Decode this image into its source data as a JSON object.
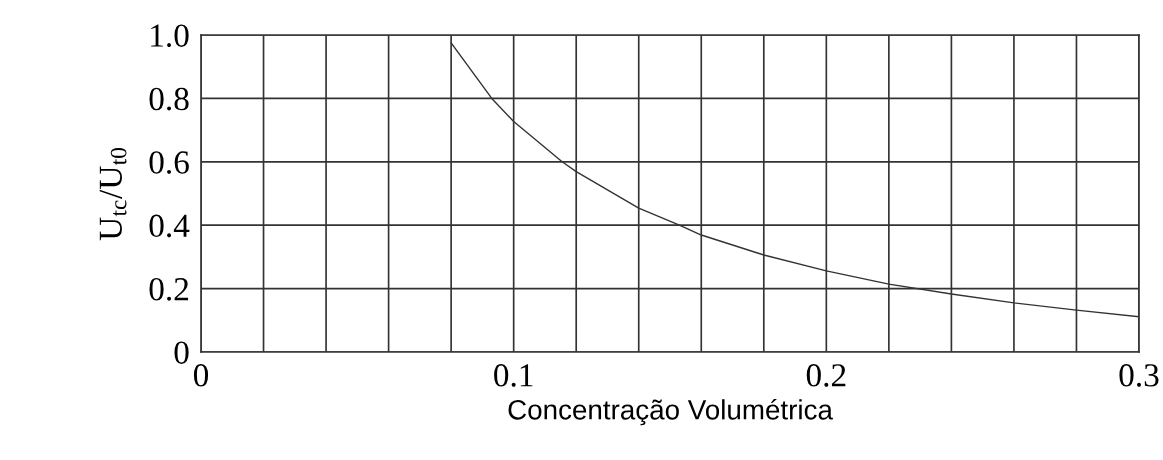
{
  "chart_data": {
    "type": "line",
    "xlabel": "Concentração Volumétrica",
    "ylabel": "U$_{tc}$/U$_{t0}$",
    "x": [
      0.08,
      0.093,
      0.1,
      0.1155,
      0.12,
      0.14,
      0.153,
      0.16,
      0.18,
      0.2,
      0.22,
      0.24,
      0.26,
      0.28,
      0.3
    ],
    "series": [
      {
        "color": "#333333",
        "values": [
          0.975,
          0.8,
          0.727,
          0.6,
          0.569,
          0.454,
          0.4,
          0.369,
          0.306,
          0.256,
          0.214,
          0.183,
          0.155,
          0.132,
          0.111
        ]
      }
    ],
    "xlim": [
      0,
      0.3
    ],
    "ylim": [
      0,
      1.0
    ],
    "xticks": [
      0,
      {
        "value": 0.02,
        "label": null
      },
      {
        "value": 0.04,
        "label": null
      },
      {
        "value": 0.06,
        "label": null
      },
      {
        "value": 0.08,
        "label": null
      },
      0.1,
      {
        "value": 0.12,
        "label": null
      },
      {
        "value": 0.14,
        "label": null
      },
      {
        "value": 0.16,
        "label": null
      },
      {
        "value": 0.18,
        "label": null
      },
      0.2,
      {
        "value": 0.22,
        "label": null
      },
      {
        "value": 0.24,
        "label": null
      },
      {
        "value": 0.26,
        "label": null
      },
      {
        "value": 0.28,
        "label": null
      },
      0.3
    ],
    "yticks": [
      0,
      0.2,
      0.4,
      0.6,
      0.8,
      {
        "value": 1.0,
        "label": "1.0"
      }
    ],
    "grid": true,
    "marker": "none",
    "line_style": "solid"
  }
}
